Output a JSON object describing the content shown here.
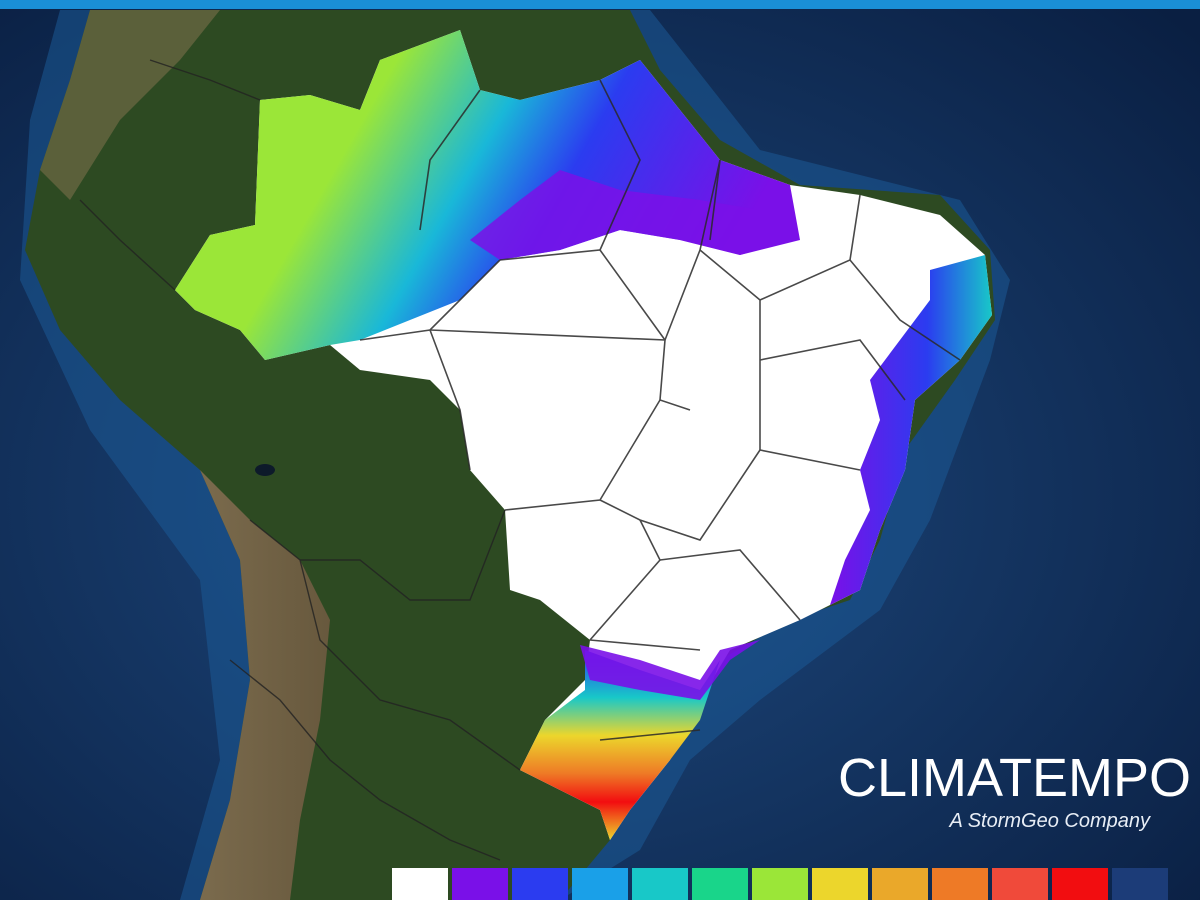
{
  "brand": {
    "name": "CLIMATEMPO",
    "tagline": "A StormGeo Company"
  },
  "colors": {
    "top_bar": "#1a8fd6",
    "ocean_deep": "#0b2347",
    "ocean_shelf": "#1b4f86",
    "land_forest": "#2d4a22",
    "land_andes": "#8b7355"
  },
  "legend": {
    "swatches": [
      "#ffffff",
      "#7a10e8",
      "#2b3cf0",
      "#1aa0e8",
      "#18c8c8",
      "#19d58a",
      "#9be638",
      "#ecd62c",
      "#eaa82a",
      "#ee7a26",
      "#f04a3a",
      "#f20d10",
      "#1c3c78"
    ]
  },
  "map": {
    "region": "Brazil / South America",
    "overlay": "precipitation field",
    "icons": [
      "state-boundaries",
      "national-boundaries"
    ]
  }
}
